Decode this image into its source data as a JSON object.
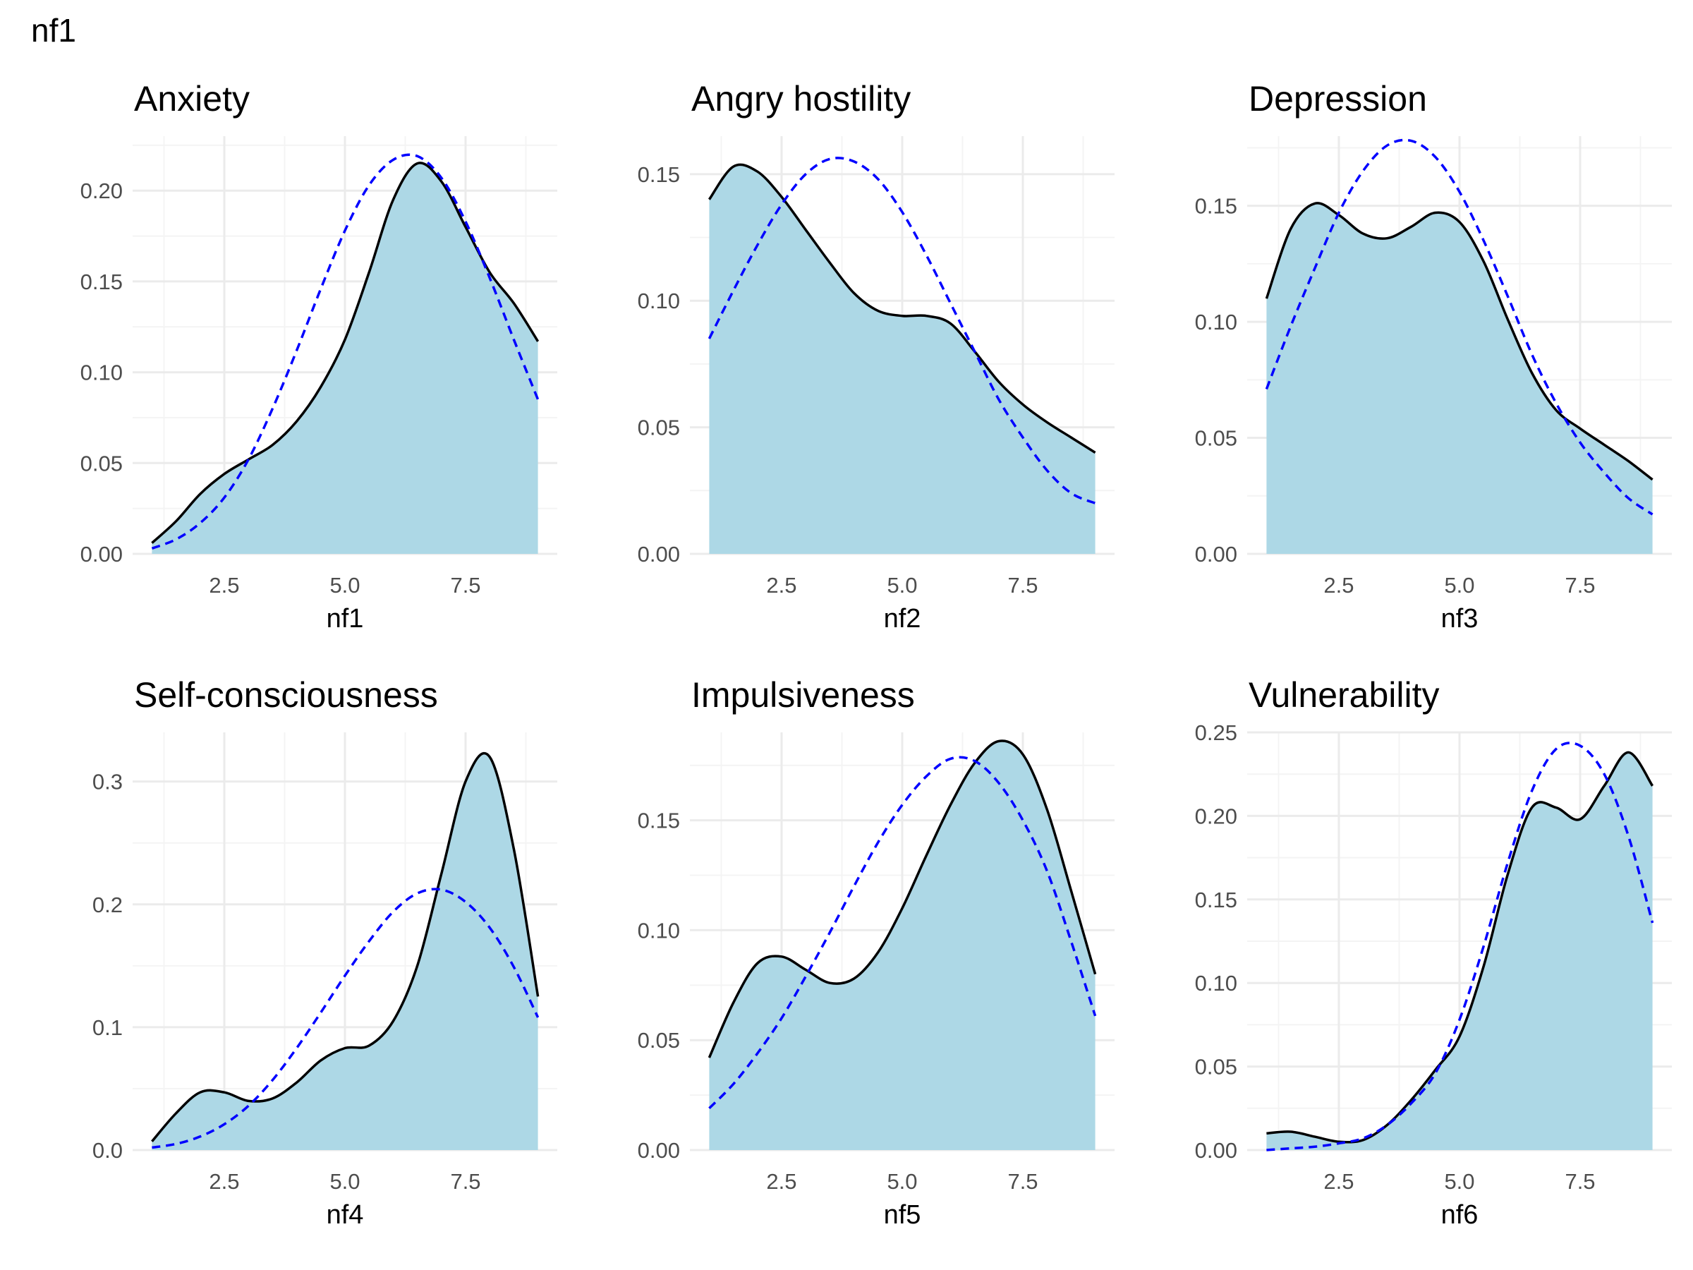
{
  "page": {
    "title": "nf1"
  },
  "colors": {
    "fill": "#add8e6",
    "density_line": "#000000",
    "normal_line": "#0000ff",
    "grid_major": "#ebebeb",
    "grid_minor": "#f4f4f4",
    "tick_text": "#4d4d4d"
  },
  "chart_data": [
    {
      "type": "area",
      "title": "Anxiety",
      "xlabel": "nf1",
      "xlim": [
        0.6,
        9.4
      ],
      "ylim": [
        0,
        0.23
      ],
      "x_ticks": [
        "2.5",
        "5.0",
        "7.5"
      ],
      "y_ticks": [
        "0.00",
        "0.05",
        "0.10",
        "0.15",
        "0.20"
      ],
      "series": [
        {
          "role": "density",
          "x": [
            1,
            1.5,
            2,
            2.5,
            3,
            3.5,
            4,
            4.5,
            5,
            5.5,
            6,
            6.5,
            7,
            7.5,
            8,
            8.5,
            9
          ],
          "y": [
            0.006,
            0.018,
            0.033,
            0.044,
            0.052,
            0.06,
            0.073,
            0.092,
            0.118,
            0.155,
            0.195,
            0.215,
            0.205,
            0.18,
            0.155,
            0.138,
            0.117
          ]
        },
        {
          "role": "normal",
          "x": [
            1,
            1.5,
            2,
            2.5,
            3,
            3.5,
            4,
            4.5,
            5,
            5.5,
            6,
            6.5,
            7,
            7.5,
            8,
            8.5,
            9
          ],
          "y": [
            0.003,
            0.008,
            0.017,
            0.031,
            0.052,
            0.08,
            0.112,
            0.146,
            0.178,
            0.203,
            0.217,
            0.219,
            0.207,
            0.183,
            0.152,
            0.118,
            0.085
          ]
        }
      ]
    },
    {
      "type": "area",
      "title": "Angry hostility",
      "xlabel": "nf2",
      "xlim": [
        0.6,
        9.4
      ],
      "ylim": [
        0,
        0.165
      ],
      "x_ticks": [
        "2.5",
        "5.0",
        "7.5"
      ],
      "y_ticks": [
        "0.00",
        "0.05",
        "0.10",
        "0.15"
      ],
      "series": [
        {
          "role": "density",
          "x": [
            1,
            1.5,
            2,
            2.5,
            3,
            3.5,
            4,
            4.5,
            5,
            5.5,
            6,
            6.5,
            7,
            7.5,
            8,
            8.5,
            9
          ],
          "y": [
            0.14,
            0.153,
            0.151,
            0.141,
            0.128,
            0.115,
            0.103,
            0.096,
            0.094,
            0.094,
            0.091,
            0.08,
            0.068,
            0.059,
            0.052,
            0.046,
            0.04
          ]
        },
        {
          "role": "normal",
          "x": [
            1,
            1.5,
            2,
            2.5,
            3,
            3.5,
            4,
            4.5,
            5,
            5.5,
            6,
            6.5,
            7,
            7.5,
            8,
            8.5,
            9
          ],
          "y": [
            0.085,
            0.104,
            0.122,
            0.138,
            0.15,
            0.156,
            0.155,
            0.148,
            0.135,
            0.118,
            0.099,
            0.08,
            0.061,
            0.046,
            0.033,
            0.024,
            0.02
          ]
        }
      ]
    },
    {
      "type": "area",
      "title": "Depression",
      "xlabel": "nf3",
      "xlim": [
        0.6,
        9.4
      ],
      "ylim": [
        0,
        0.18
      ],
      "x_ticks": [
        "2.5",
        "5.0",
        "7.5"
      ],
      "y_ticks": [
        "0.00",
        "0.05",
        "0.10",
        "0.15"
      ],
      "series": [
        {
          "role": "density",
          "x": [
            1,
            1.5,
            2,
            2.5,
            3,
            3.5,
            4,
            4.5,
            5,
            5.5,
            6,
            6.5,
            7,
            7.5,
            8,
            8.5,
            9
          ],
          "y": [
            0.11,
            0.14,
            0.151,
            0.146,
            0.138,
            0.136,
            0.141,
            0.147,
            0.143,
            0.126,
            0.101,
            0.078,
            0.062,
            0.054,
            0.047,
            0.04,
            0.032
          ]
        },
        {
          "role": "normal",
          "x": [
            1,
            1.5,
            2,
            2.5,
            3,
            3.5,
            4,
            4.5,
            5,
            5.5,
            6,
            6.5,
            7,
            7.5,
            8,
            8.5,
            9
          ],
          "y": [
            0.071,
            0.098,
            0.123,
            0.147,
            0.165,
            0.176,
            0.178,
            0.171,
            0.156,
            0.135,
            0.111,
            0.086,
            0.065,
            0.048,
            0.035,
            0.024,
            0.017
          ]
        }
      ]
    },
    {
      "type": "area",
      "title": "Self-consciousness",
      "xlabel": "nf4",
      "xlim": [
        0.6,
        9.4
      ],
      "ylim": [
        0,
        0.34
      ],
      "x_ticks": [
        "2.5",
        "5.0",
        "7.5"
      ],
      "y_ticks": [
        "0.0",
        "0.1",
        "0.2",
        "0.3"
      ],
      "series": [
        {
          "role": "density",
          "x": [
            1,
            1.5,
            2,
            2.5,
            3,
            3.5,
            4,
            4.5,
            5,
            5.5,
            6,
            6.5,
            7,
            7.5,
            8,
            8.5,
            9
          ],
          "y": [
            0.007,
            0.03,
            0.047,
            0.047,
            0.04,
            0.042,
            0.055,
            0.073,
            0.083,
            0.085,
            0.105,
            0.15,
            0.225,
            0.3,
            0.32,
            0.245,
            0.125
          ]
        },
        {
          "role": "normal",
          "x": [
            1,
            1.5,
            2,
            2.5,
            3,
            3.5,
            4,
            4.5,
            5,
            5.5,
            6,
            6.5,
            7,
            7.5,
            8,
            8.5,
            9
          ],
          "y": [
            0.002,
            0.005,
            0.011,
            0.021,
            0.036,
            0.057,
            0.083,
            0.112,
            0.142,
            0.17,
            0.194,
            0.209,
            0.212,
            0.202,
            0.181,
            0.149,
            0.108
          ]
        }
      ]
    },
    {
      "type": "area",
      "title": "Impulsiveness",
      "xlabel": "nf5",
      "xlim": [
        0.6,
        9.4
      ],
      "ylim": [
        0,
        0.19
      ],
      "x_ticks": [
        "2.5",
        "5.0",
        "7.5"
      ],
      "y_ticks": [
        "0.00",
        "0.05",
        "0.10",
        "0.15"
      ],
      "series": [
        {
          "role": "density",
          "x": [
            1,
            1.5,
            2,
            2.5,
            3,
            3.5,
            4,
            4.5,
            5,
            5.5,
            6,
            6.5,
            7,
            7.5,
            8,
            8.5,
            9
          ],
          "y": [
            0.042,
            0.067,
            0.085,
            0.088,
            0.082,
            0.076,
            0.078,
            0.09,
            0.11,
            0.134,
            0.157,
            0.176,
            0.186,
            0.18,
            0.155,
            0.118,
            0.08
          ]
        },
        {
          "role": "normal",
          "x": [
            1,
            1.5,
            2,
            2.5,
            3,
            3.5,
            4,
            4.5,
            5,
            5.5,
            6,
            6.5,
            7,
            7.5,
            8,
            8.5,
            9
          ],
          "y": [
            0.019,
            0.03,
            0.044,
            0.06,
            0.079,
            0.099,
            0.12,
            0.14,
            0.157,
            0.17,
            0.178,
            0.177,
            0.167,
            0.15,
            0.127,
            0.095,
            0.061
          ]
        }
      ]
    },
    {
      "type": "area",
      "title": "Vulnerability",
      "xlabel": "nf6",
      "xlim": [
        0.6,
        9.4
      ],
      "ylim": [
        0,
        0.25
      ],
      "x_ticks": [
        "2.5",
        "5.0",
        "7.5"
      ],
      "y_ticks": [
        "0.00",
        "0.05",
        "0.10",
        "0.15",
        "0.20",
        "0.25"
      ],
      "series": [
        {
          "role": "density",
          "x": [
            1,
            1.5,
            2,
            2.5,
            3,
            3.5,
            4,
            4.5,
            5,
            5.5,
            6,
            6.5,
            7,
            7.5,
            8,
            8.5,
            9
          ],
          "y": [
            0.01,
            0.011,
            0.008,
            0.005,
            0.006,
            0.015,
            0.03,
            0.048,
            0.068,
            0.11,
            0.165,
            0.205,
            0.205,
            0.198,
            0.218,
            0.238,
            0.218
          ]
        },
        {
          "role": "normal",
          "x": [
            1,
            1.5,
            2,
            2.5,
            3,
            3.5,
            4,
            4.5,
            5,
            5.5,
            6,
            6.5,
            7,
            7.5,
            8,
            8.5,
            9
          ],
          "y": [
            0.0,
            0.001,
            0.002,
            0.004,
            0.007,
            0.015,
            0.028,
            0.046,
            0.078,
            0.122,
            0.172,
            0.215,
            0.24,
            0.242,
            0.225,
            0.188,
            0.136
          ]
        }
      ]
    }
  ]
}
